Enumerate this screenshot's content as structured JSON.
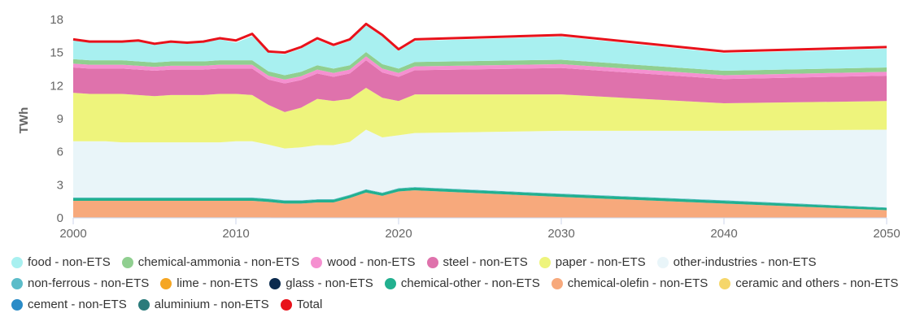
{
  "chart_data": {
    "type": "area",
    "stacked": true,
    "y_label": "TWh",
    "x": [
      2000,
      2001,
      2002,
      2003,
      2004,
      2005,
      2006,
      2007,
      2008,
      2009,
      2010,
      2011,
      2012,
      2013,
      2014,
      2015,
      2016,
      2017,
      2018,
      2019,
      2020,
      2021,
      2030,
      2040,
      2050
    ],
    "xlim": [
      2000,
      2050
    ],
    "xticks": [
      2000,
      2010,
      2020,
      2030,
      2040,
      2050
    ],
    "ylim": [
      0,
      18
    ],
    "yticks": [
      0,
      3,
      6,
      9,
      12,
      15,
      18
    ],
    "grid": false,
    "series": [
      {
        "name": "food - non-ETS",
        "color": "#a8f0f0",
        "values": [
          1.7,
          1.6,
          1.6,
          1.6,
          1.8,
          1.6,
          1.7,
          1.6,
          1.7,
          1.9,
          1.6,
          2.2,
          1.7,
          1.9,
          2.1,
          2.3,
          2.0,
          2.2,
          2.4,
          2.5,
          1.6,
          1.9,
          2.1,
          1.6,
          1.7
        ]
      },
      {
        "name": "chemical-ammonia - non-ETS",
        "color": "#90cf90",
        "values": [
          0.4,
          0.4,
          0.4,
          0.4,
          0.4,
          0.4,
          0.4,
          0.4,
          0.4,
          0.4,
          0.4,
          0.4,
          0.4,
          0.4,
          0.4,
          0.4,
          0.4,
          0.4,
          0.4,
          0.4,
          0.4,
          0.4,
          0.4,
          0.4,
          0.4
        ]
      },
      {
        "name": "wood - non-ETS",
        "color": "#f590d0",
        "values": [
          0.35,
          0.35,
          0.35,
          0.35,
          0.35,
          0.35,
          0.35,
          0.35,
          0.35,
          0.35,
          0.35,
          0.35,
          0.35,
          0.35,
          0.35,
          0.35,
          0.35,
          0.35,
          0.35,
          0.35,
          0.35,
          0.35,
          0.35,
          0.35,
          0.35
        ]
      },
      {
        "name": "steel - non-ETS",
        "color": "#df72ac",
        "values": [
          2.3,
          2.3,
          2.3,
          2.3,
          2.3,
          2.3,
          2.3,
          2.3,
          2.3,
          2.3,
          2.3,
          2.4,
          2.3,
          2.6,
          2.5,
          2.3,
          2.2,
          2.3,
          2.5,
          2.3,
          2.2,
          2.2,
          2.4,
          2.2,
          2.3
        ]
      },
      {
        "name": "paper - non-ETS",
        "color": "#eef47c",
        "values": [
          4.4,
          4.3,
          4.3,
          4.4,
          4.3,
          4.2,
          4.3,
          4.3,
          4.3,
          4.4,
          4.3,
          4.2,
          3.6,
          3.3,
          3.6,
          4.2,
          4.0,
          3.9,
          3.8,
          3.6,
          3.1,
          3.5,
          3.3,
          2.5,
          2.6
        ]
      },
      {
        "name": "other-industries - non-ETS",
        "color": "#e9f5f9",
        "values": [
          5.1,
          5.1,
          5.1,
          5.0,
          5.0,
          5.0,
          5.0,
          5.0,
          5.0,
          5.0,
          5.1,
          5.1,
          4.9,
          4.7,
          4.8,
          4.9,
          4.9,
          4.8,
          5.4,
          5.0,
          4.8,
          4.9,
          5.7,
          6.3,
          7.05
        ]
      },
      {
        "name": "non-ferrous - non-ETS",
        "color": "#5bbcc9",
        "values": [
          0.05,
          0.05,
          0.05,
          0.05,
          0.05,
          0.05,
          0.05,
          0.05,
          0.05,
          0.05,
          0.05,
          0.05,
          0.05,
          0.05,
          0.05,
          0.05,
          0.05,
          0.05,
          0.05,
          0.05,
          0.05,
          0.05,
          0.05,
          0.05,
          0.05
        ]
      },
      {
        "name": "lime - non-ETS",
        "color": "#f5a623",
        "values": [
          0,
          0,
          0,
          0,
          0,
          0,
          0,
          0,
          0,
          0,
          0,
          0,
          0,
          0,
          0,
          0,
          0,
          0,
          0,
          0,
          0,
          0,
          0,
          0,
          0
        ]
      },
      {
        "name": "glass - non-ETS",
        "color": "#0b2a4e",
        "values": [
          0,
          0,
          0,
          0,
          0,
          0,
          0,
          0,
          0,
          0,
          0,
          0,
          0,
          0,
          0,
          0,
          0,
          0,
          0,
          0,
          0,
          0,
          0,
          0,
          0
        ]
      },
      {
        "name": "chemical-other - non-ETS",
        "color": "#22b08f",
        "values": [
          0.25,
          0.25,
          0.25,
          0.25,
          0.25,
          0.25,
          0.25,
          0.25,
          0.25,
          0.25,
          0.25,
          0.25,
          0.25,
          0.25,
          0.25,
          0.25,
          0.25,
          0.25,
          0.25,
          0.25,
          0.25,
          0.25,
          0.25,
          0.25,
          0.2
        ]
      },
      {
        "name": "chemical-olefin - non-ETS",
        "color": "#f7a97c",
        "values": [
          1.5,
          1.5,
          1.5,
          1.5,
          1.5,
          1.5,
          1.5,
          1.5,
          1.5,
          1.5,
          1.5,
          1.5,
          1.4,
          1.3,
          1.3,
          1.4,
          1.4,
          1.8,
          2.3,
          2.0,
          2.4,
          2.5,
          1.9,
          1.3,
          0.7
        ]
      },
      {
        "name": "ceramic and others - non-ETS",
        "color": "#f5d66a",
        "values": [
          0,
          0,
          0,
          0,
          0,
          0,
          0,
          0,
          0,
          0,
          0,
          0,
          0,
          0,
          0,
          0,
          0,
          0,
          0,
          0,
          0,
          0,
          0,
          0,
          0
        ]
      },
      {
        "name": "cement - non-ETS",
        "color": "#2a8bc7",
        "values": [
          0,
          0,
          0,
          0,
          0,
          0,
          0,
          0,
          0,
          0,
          0,
          0,
          0,
          0,
          0,
          0,
          0,
          0,
          0,
          0,
          0,
          0,
          0,
          0,
          0
        ]
      },
      {
        "name": "aluminium - non-ETS",
        "color": "#2b7b7b",
        "values": [
          0.05,
          0.05,
          0.05,
          0.05,
          0.05,
          0.05,
          0.05,
          0.05,
          0.05,
          0.05,
          0.05,
          0.05,
          0.05,
          0,
          0,
          0,
          0,
          0,
          0,
          0,
          0,
          0,
          0,
          0,
          0
        ]
      },
      {
        "name": "Total",
        "color": "#e8121b",
        "line": true,
        "values": [
          16.2,
          16.0,
          16.0,
          16.0,
          16.1,
          15.8,
          16.0,
          15.9,
          16.0,
          16.3,
          16.1,
          16.7,
          15.1,
          15.0,
          15.5,
          16.3,
          15.7,
          16.2,
          17.6,
          16.6,
          15.3,
          16.2,
          16.6,
          15.1,
          15.5
        ]
      }
    ]
  }
}
